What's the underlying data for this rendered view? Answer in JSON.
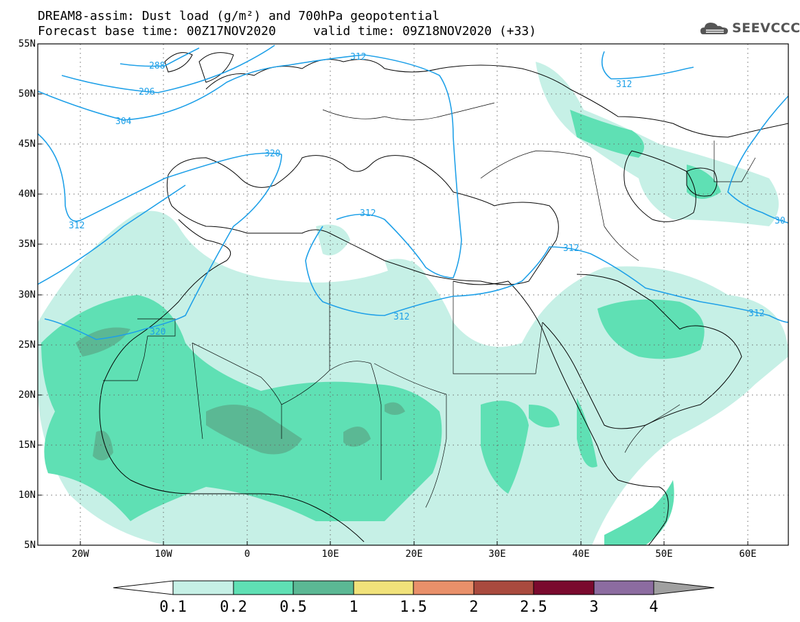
{
  "title_line1": "DREAM8-assim: Dust load (g/m²) and 700hPa geopotential",
  "title_line2": "Forecast base time: 00Z17NOV2020     valid time: 09Z18NOV2020 (+33)",
  "logo_text": "SEEVCCC",
  "lat_labels": [
    "55N",
    "50N",
    "45N",
    "40N",
    "35N",
    "30N",
    "25N",
    "20N",
    "15N",
    "10N",
    "5N"
  ],
  "lon_labels": [
    "20W",
    "10W",
    "0",
    "10E",
    "20E",
    "30E",
    "40E",
    "50E",
    "60E"
  ],
  "contour_labels": [
    "288",
    "296",
    "304",
    "312",
    "320",
    "312",
    "320",
    "312",
    "312",
    "312",
    "312",
    "312",
    "30"
  ],
  "colorbar": {
    "ticks": [
      "0.1",
      "0.2",
      "0.5",
      "1",
      "1.5",
      "2",
      "2.5",
      "3",
      "4"
    ],
    "colors": [
      "#c6f0e6",
      "#5fe0b4",
      "#5bb894",
      "#f1e27a",
      "#e9906a",
      "#a94a3e",
      "#7a0a2e",
      "#8c6ca0",
      "#a0a0a0"
    ]
  },
  "colors": {
    "contour": "#1ea0e8",
    "dust_low": "#c6f0e6",
    "dust_mid": "#5fe0b4",
    "dust_high": "#5bb894"
  }
}
